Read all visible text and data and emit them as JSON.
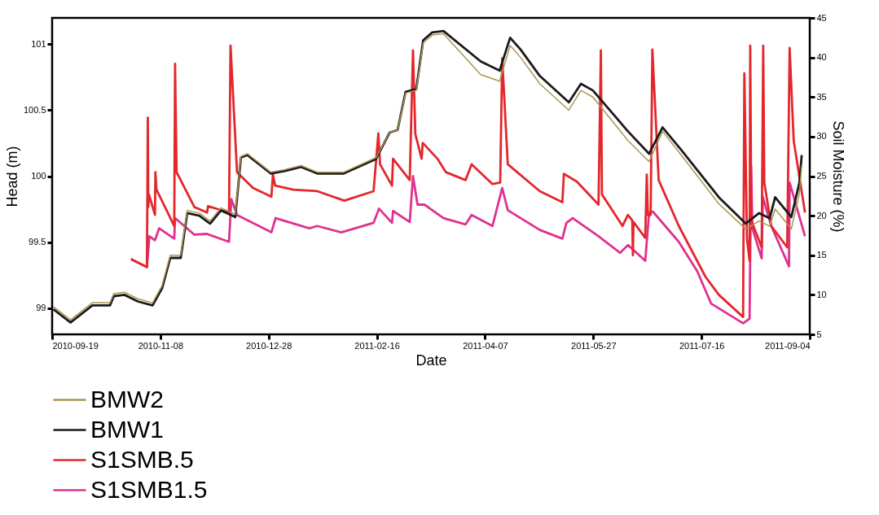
{
  "chart_data": {
    "type": "line",
    "xlabel": "Date",
    "ylabel": "Head (m)",
    "y2label": "Soil Moisture (%)",
    "xlim": [
      "2010-09-19",
      "2011-09-04"
    ],
    "xticks": [
      "2010-09-19",
      "2010-11-08",
      "2010-12-28",
      "2011-02-16",
      "2011-04-07",
      "2011-05-27",
      "2011-07-16",
      "2011-09-04"
    ],
    "ylim": [
      98.8,
      101.2
    ],
    "yticks": [
      99,
      99.5,
      100,
      100.5,
      101
    ],
    "y2lim": [
      5,
      45
    ],
    "y2ticks": [
      5,
      10,
      15,
      20,
      25,
      30,
      35,
      40,
      45
    ],
    "legend": "bottom",
    "x": [
      "2010-09-19T14:00",
      "2010-09-27T12:00",
      "2010-10-07T14:00",
      "2010-10-15T17:00",
      "2010-10-17T12:00",
      "2010-10-22T10:00",
      "2010-10-28T14:00",
      "2010-11-04T10:00",
      "2010-11-08T19:00",
      "2010-11-12T14:00",
      "2010-11-17T10:00",
      "2010-11-20T10:00",
      "2010-11-26T00:00",
      "2010-12-01T00:00",
      "2010-12-06T00:00",
      "2010-12-12T14:00",
      "2010-12-15T05:00",
      "2010-12-18T05:00",
      "2010-12-29T00:00",
      "2011-01-04T14:00",
      "2011-01-12T00:00",
      "2011-01-19T12:00",
      "2011-01-31T17:00",
      "2011-02-15T14:00",
      "2011-02-21T22:00",
      "2011-02-25T14:00",
      "2011-03-01T07:00",
      "2011-03-06T05:00",
      "2011-03-09T10:00",
      "2011-03-13T14:00",
      "2011-03-18T19:00",
      "2011-04-05T00:00",
      "2011-04-13T17:00",
      "2011-04-18T14:00",
      "2011-04-23T10:00",
      "2011-05-02T07:00",
      "2011-05-15T17:00",
      "2011-05-21T07:00",
      "2011-05-26T19:00",
      "2011-06-12T00:00",
      "2011-06-21T19:00",
      "2011-06-28T00:00",
      "2011-07-06T14:00",
      "2011-07-24T00:00",
      "2011-08-05T10:00",
      "2011-08-11T14:00",
      "2011-08-16T12:00",
      "2011-08-19T00:00",
      "2011-08-26T12:00",
      "2011-08-30T05:00",
      "2011-08-31T07:00"
    ],
    "series": [
      {
        "name": "BMW2",
        "color": "#ac9457",
        "values": [
          99.01,
          98.91,
          99.04,
          99.04,
          99.11,
          99.12,
          99.07,
          99.04,
          99.17,
          99.4,
          99.4,
          99.74,
          99.72,
          99.66,
          99.76,
          99.71,
          100.15,
          100.17,
          100.03,
          100.05,
          100.08,
          100.03,
          100.03,
          100.14,
          100.33,
          100.35,
          100.63,
          100.65,
          101.01,
          101.07,
          101.08,
          100.77,
          100.72,
          100.99,
          100.9,
          100.7,
          100.5,
          100.65,
          100.6,
          100.27,
          100.11,
          100.34,
          100.16,
          99.79,
          99.6,
          99.66,
          99.62,
          99.75,
          99.6,
          99.87,
          100.08
        ]
      },
      {
        "name": "BMW1",
        "color": "#1a1a1a",
        "values": [
          98.99,
          98.89,
          99.02,
          99.02,
          99.09,
          99.1,
          99.05,
          99.02,
          99.15,
          99.38,
          99.38,
          99.72,
          99.7,
          99.64,
          99.74,
          99.69,
          100.14,
          100.16,
          100.02,
          100.04,
          100.07,
          100.02,
          100.02,
          100.13,
          100.33,
          100.35,
          100.64,
          100.66,
          101.03,
          101.09,
          101.1,
          100.87,
          100.8,
          101.05,
          100.96,
          100.76,
          100.56,
          100.7,
          100.65,
          100.34,
          100.17,
          100.37,
          100.2,
          99.84,
          99.64,
          99.72,
          99.68,
          99.84,
          99.69,
          99.95,
          100.16
        ]
      },
      {
        "name": "S1SMB.5",
        "color": "#e3272b",
        "axis": "y2",
        "x": [
          "2010-10-25T10:00",
          "2010-11-01T19:00",
          "2010-11-02T05:00",
          "2010-11-02T10:00",
          "2010-11-02T17:00",
          "2010-11-05T12:00",
          "2010-11-05T17:00",
          "2010-11-06T05:00",
          "2010-11-14T10:00",
          "2010-11-14T19:00",
          "2010-11-15T12:00",
          "2010-11-23T17:00",
          "2010-11-29T14:00",
          "2010-11-30T00:00",
          "2010-12-09T17:00",
          "2010-12-10T10:00",
          "2010-12-13T10:00",
          "2010-12-20T19:00",
          "2010-12-29T07:00",
          "2010-12-30T00:00",
          "2010-12-31T00:00",
          "2011-01-08T10:00",
          "2011-01-19T12:00",
          "2011-02-01T00:00",
          "2011-02-14T12:00",
          "2011-02-16T17:00",
          "2011-02-17T12:00",
          "2011-02-23T00:00",
          "2011-02-23T12:00",
          "2011-03-03T05:00",
          "2011-03-04T17:00",
          "2011-03-05T19:00",
          "2011-03-08T17:00",
          "2011-03-09T05:00",
          "2011-03-16T00:00",
          "2011-03-19T22:00",
          "2011-03-29T00:00",
          "2011-03-31T19:00",
          "2011-04-10T10:00",
          "2011-04-14T00:00",
          "2011-04-14T22:00",
          "2011-04-17T12:00",
          "2011-05-02T07:00",
          "2011-05-12T17:00",
          "2011-05-13T10:00",
          "2011-05-19T10:00",
          "2011-05-29T10:00",
          "2011-05-30T12:00",
          "2011-05-31T00:00",
          "2011-06-09T12:00",
          "2011-06-12T00:00",
          "2011-06-14T00:00",
          "2011-06-14T07:00",
          "2011-06-14T14:00",
          "2011-06-20T00:00",
          "2011-06-20T17:00",
          "2011-06-21T05:00",
          "2011-06-22T12:00",
          "2011-06-23T07:00",
          "2011-06-26T05:00",
          "2011-07-05T12:00",
          "2011-07-17T19:00",
          "2011-07-24T00:00",
          "2011-08-04T05:00",
          "2011-08-04T19:00",
          "2011-08-06T00:00",
          "2011-08-07T05:00",
          "2011-08-07T12:00",
          "2011-08-08T00:00",
          "2011-08-12T19:00",
          "2011-08-13T12:00",
          "2011-08-14T00:00",
          "2011-08-17T05:00",
          "2011-08-24T14:00",
          "2011-08-25T17:00",
          "2011-08-27T14:00",
          "2011-09-01T19:00"
        ],
        "values": [
          14.5,
          13.5,
          32.4,
          21.1,
          22.7,
          20.1,
          25.5,
          23.3,
          18.7,
          39.2,
          25.5,
          21.1,
          20.4,
          21.2,
          20.4,
          41.5,
          25.5,
          23.5,
          22.4,
          25.2,
          23.8,
          23.3,
          23.1,
          21.9,
          23.1,
          30.4,
          26.5,
          23.8,
          27.2,
          24.5,
          40.9,
          30.3,
          27.2,
          29.2,
          27.2,
          25.5,
          24.5,
          26.5,
          24.0,
          24.2,
          39.9,
          26.5,
          23.1,
          21.7,
          25.3,
          24.3,
          21.4,
          40.9,
          22.7,
          18.7,
          20.1,
          19.4,
          15.0,
          19.2,
          17.2,
          25.2,
          20.1,
          20.1,
          41.0,
          24.5,
          18.7,
          12.3,
          10.0,
          7.2,
          38.0,
          17.1,
          14.3,
          41.5,
          19.4,
          16.0,
          41.5,
          24.2,
          18.7,
          16.0,
          41.2,
          29.5,
          20.4
        ]
      },
      {
        "name": "S1SMB1.5",
        "color": "#e0318f",
        "axis": "y2",
        "x": [
          "2010-10-25T10:00",
          "2010-11-01T19:00",
          "2010-11-02T22:00",
          "2010-11-05T12:00",
          "2010-11-07T10:00",
          "2010-11-14T10:00",
          "2010-11-14T19:00",
          "2010-11-23T17:00",
          "2010-11-29T14:00",
          "2010-12-09T17:00",
          "2010-12-10T19:00",
          "2010-12-13T10:00",
          "2010-12-29T07:00",
          "2010-12-31T05:00",
          "2011-01-15T19:00",
          "2011-01-19T12:00",
          "2011-01-30T14:00",
          "2011-02-14T12:00",
          "2011-02-17T00:00",
          "2011-02-23T00:00",
          "2011-02-23T12:00",
          "2011-03-03T05:00",
          "2011-03-04T17:00",
          "2011-03-06T19:00",
          "2011-03-10T00:00",
          "2011-03-18T19:00",
          "2011-03-29T00:00",
          "2011-03-31T19:00",
          "2011-04-10T10:00",
          "2011-04-14T22:00",
          "2011-04-17T12:00",
          "2011-05-02T07:00",
          "2011-05-12T17:00",
          "2011-05-14T14:00",
          "2011-05-17T12:00",
          "2011-05-29T10:00",
          "2011-06-08T10:00",
          "2011-06-12T00:00",
          "2011-06-20T00:00",
          "2011-06-21T19:00",
          "2011-06-23T14:00",
          "2011-07-05T12:00",
          "2011-07-14T00:00",
          "2011-07-20T10:00",
          "2011-08-04T05:00",
          "2011-08-07T05:00",
          "2011-08-07T22:00",
          "2011-08-08T12:00",
          "2011-08-12T19:00",
          "2011-08-13T07:00",
          "2011-08-17T05:00",
          "2011-08-25T10:00",
          "2011-08-25T17:00",
          "2011-09-01T19:00"
        ],
        "values": [
          14.5,
          13.5,
          17.4,
          16.9,
          18.4,
          17.1,
          19.7,
          17.6,
          17.7,
          16.7,
          22.1,
          20.1,
          17.9,
          19.7,
          18.4,
          18.7,
          17.9,
          19.1,
          20.9,
          19.1,
          20.6,
          19.2,
          25.0,
          21.4,
          21.4,
          19.7,
          18.9,
          20.1,
          18.7,
          23.5,
          20.7,
          18.2,
          17.1,
          19.1,
          19.7,
          17.4,
          15.3,
          16.3,
          14.3,
          20.4,
          20.5,
          16.7,
          13.0,
          8.9,
          6.4,
          7.0,
          26.3,
          18.4,
          14.6,
          22.4,
          18.7,
          13.6,
          24.2,
          17.4
        ]
      }
    ]
  }
}
